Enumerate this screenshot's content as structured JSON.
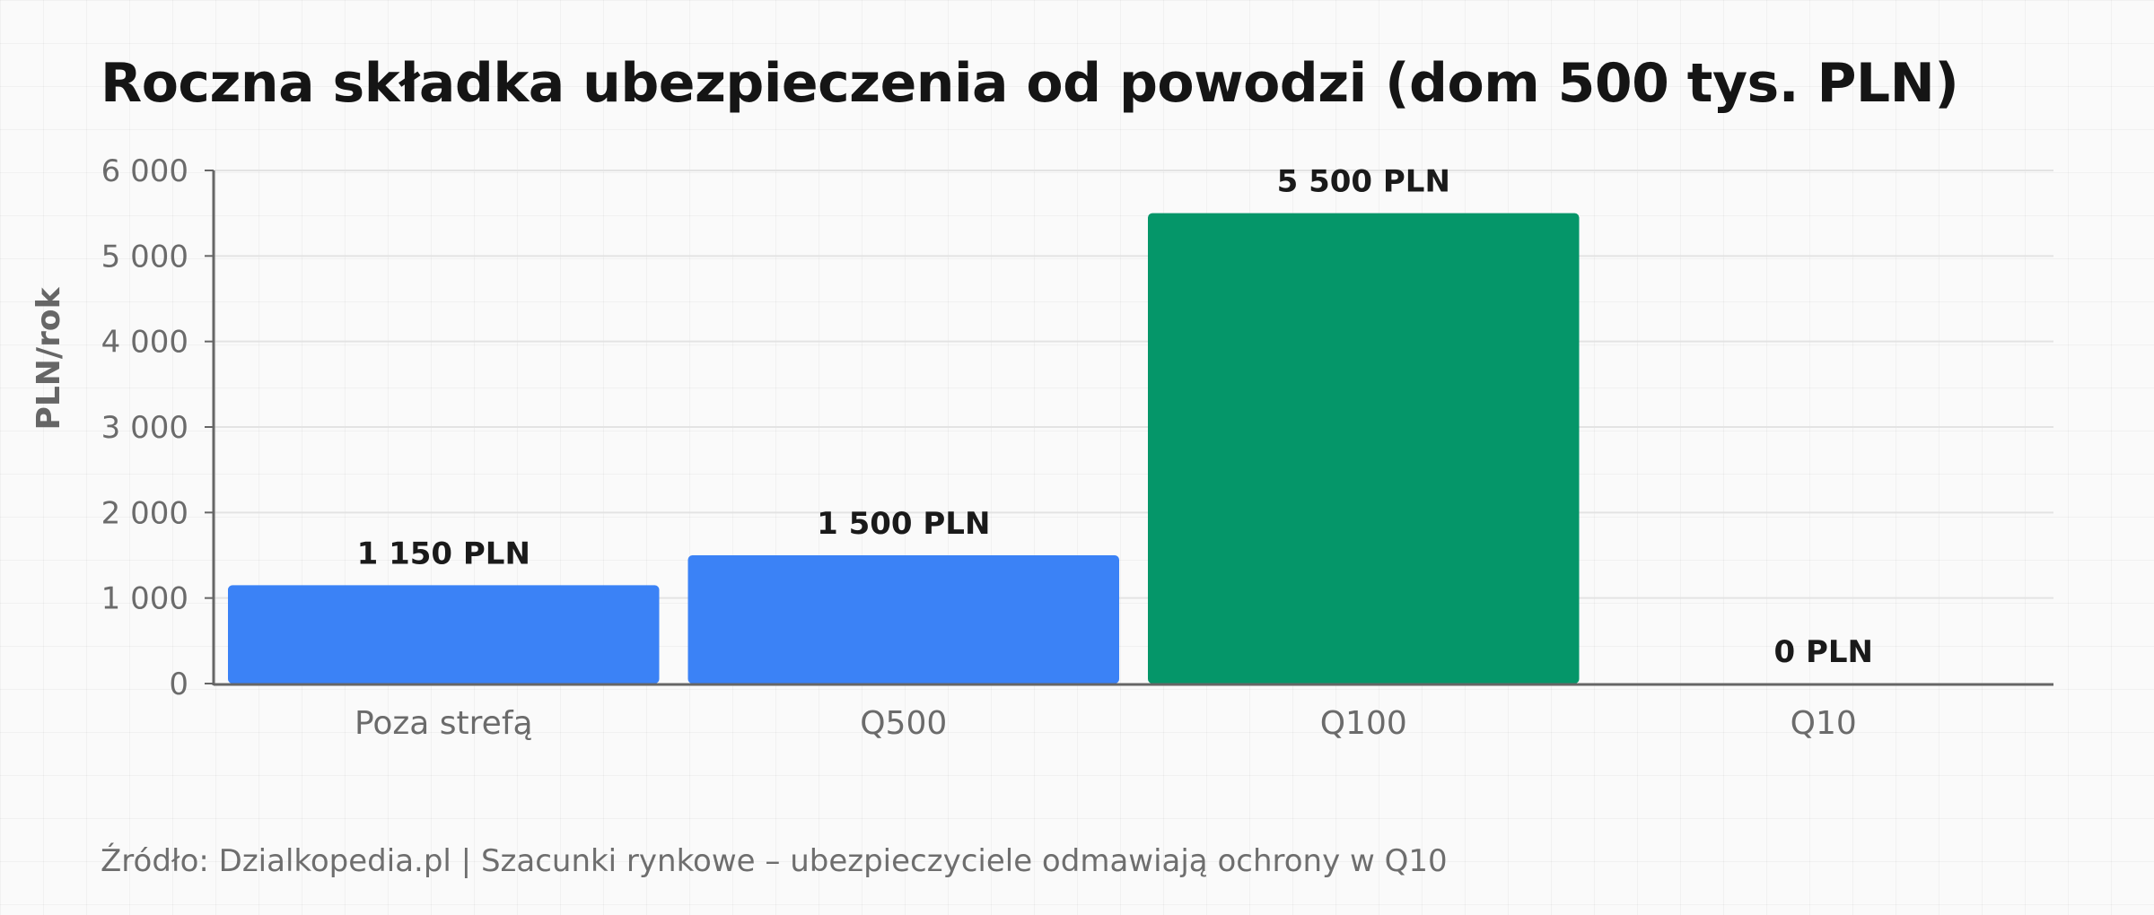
{
  "chart_data": {
    "type": "bar",
    "title": "Roczna składka ubezpieczenia od powodzi (dom 500 tys. PLN)",
    "ylabel": "PLN/rok",
    "xlabel": "",
    "categories": [
      "Poza strefą",
      "Q500",
      "Q100",
      "Q10"
    ],
    "values": [
      1150,
      1500,
      5500,
      0
    ],
    "data_labels": [
      "1 150 PLN",
      "1 500 PLN",
      "5 500 PLN",
      "0 PLN"
    ],
    "bar_colors": [
      "#3b82f6",
      "#3b82f6",
      "#059669",
      "#3b82f6"
    ],
    "ylim": [
      0,
      6000
    ],
    "yticks": [
      0,
      1000,
      2000,
      3000,
      4000,
      5000,
      6000
    ],
    "ytick_labels": [
      "0",
      "1 000",
      "2 000",
      "3 000",
      "4 000",
      "5 000",
      "6 000"
    ],
    "grid": true,
    "legend": "none"
  },
  "footer": {
    "source": "Źródło: Dzialkopedia.pl | Szacunki rynkowe – ubezpieczyciele odmawiają ochrony w Q10"
  }
}
